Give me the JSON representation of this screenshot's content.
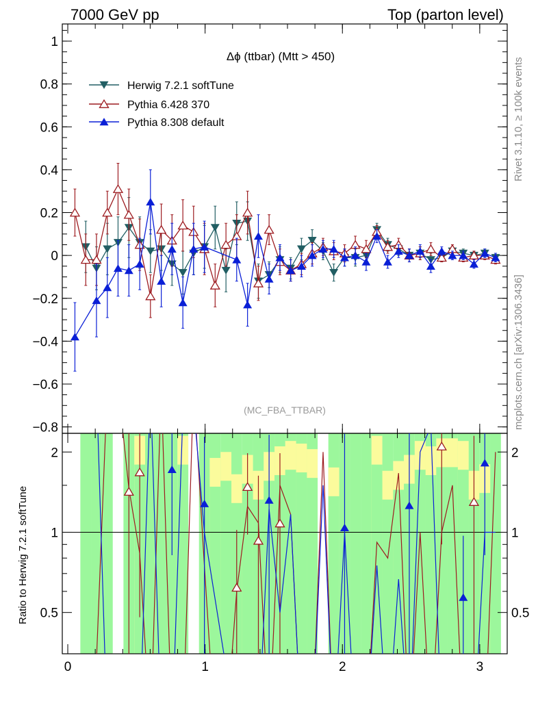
{
  "header": {
    "left": "7000 GeV pp",
    "right": "Top (parton level)"
  },
  "side_labels": {
    "rivet": "Rivet 3.1.10, ≥ 100k events",
    "mcplots": "mcplots.cern.ch [arXiv:1306.3436]"
  },
  "chart_data": {
    "type": "line",
    "title": "Δϕ (ttbar) (Mtt > 450)",
    "watermark": "(MC_FBA_TTBAR)",
    "ylabel_ratio": "Ratio to Herwig 7.2.1 softTune",
    "xlim": [
      -0.04,
      3.2
    ],
    "ylim_main": [
      -0.83,
      1.08
    ],
    "ylim_ratio": [
      0.35,
      2.35
    ],
    "x_ticks": [
      "0",
      "1",
      "2",
      "3"
    ],
    "y_ticks_main": [
      "−0.8",
      "−0.6",
      "−0.4",
      "−0.2",
      "0",
      "0.2",
      "0.4",
      "0.6",
      "0.8",
      "1"
    ],
    "y_ticks_ratio": [
      "0.5",
      "1",
      "2"
    ],
    "colors": {
      "herwig": "#215e63",
      "pythia6": "#9c1a1f",
      "pythia8": "#0a1fd6",
      "band_green": "#9cf79c",
      "band_yellow": "#fbfb9c"
    },
    "legend": [
      "Herwig 7.2.1 softTune",
      "Pythia 6.428 370",
      "Pythia 8.308 default"
    ],
    "x": [
      0.052,
      0.131,
      0.209,
      0.288,
      0.366,
      0.445,
      0.524,
      0.602,
      0.681,
      0.759,
      0.838,
      0.916,
      0.995,
      1.073,
      1.152,
      1.23,
      1.309,
      1.388,
      1.466,
      1.545,
      1.623,
      1.702,
      1.78,
      1.859,
      1.937,
      2.016,
      2.094,
      2.173,
      2.251,
      2.33,
      2.409,
      2.487,
      2.566,
      2.644,
      2.723,
      2.801,
      2.88,
      2.958,
      3.037,
      3.115
    ],
    "series": [
      {
        "name": "Herwig 7.2.1 softTune",
        "values": [
          null,
          0.04,
          -0.06,
          0.03,
          0.06,
          0.13,
          0.06,
          0.02,
          0.03,
          -0.04,
          -0.08,
          0.01,
          0.04,
          0.13,
          -0.07,
          0.15,
          0.16,
          -0.12,
          -0.09,
          -0.02,
          -0.06,
          0.03,
          0.07,
          0.02,
          -0.08,
          -0.01,
          -0.01,
          0.0,
          0.12,
          0.05,
          0.03,
          0.0,
          0.01,
          -0.02,
          -0.01,
          0.02,
          0.01,
          0.0,
          0.01,
          -0.01
        ],
        "errors": [
          null,
          0.12,
          0.1,
          0.12,
          0.12,
          0.14,
          0.12,
          0.1,
          0.1,
          0.1,
          0.1,
          0.1,
          0.1,
          0.1,
          0.1,
          0.1,
          0.09,
          0.08,
          0.06,
          0.06,
          0.05,
          0.05,
          0.05,
          0.04,
          0.04,
          0.04,
          0.04,
          0.04,
          0.03,
          0.03,
          0.03,
          0.03,
          0.03,
          0.03,
          0.02,
          0.02,
          0.02,
          0.02,
          0.02,
          0.02
        ]
      },
      {
        "name": "Pythia 6.428 370",
        "values": [
          0.2,
          -0.02,
          -0.02,
          0.2,
          0.31,
          0.19,
          0.05,
          -0.19,
          0.12,
          0.07,
          0.14,
          0.11,
          0.03,
          -0.14,
          0.05,
          0.09,
          0.2,
          -0.13,
          0.12,
          -0.03,
          -0.07,
          -0.04,
          0.01,
          0.04,
          0.02,
          0.01,
          0.05,
          0.03,
          0.11,
          0.04,
          0.05,
          0.0,
          0.01,
          0.03,
          -0.01,
          0.03,
          -0.01,
          0.0,
          0.0,
          -0.02
        ],
        "errors": [
          0.11,
          0.12,
          0.12,
          0.1,
          0.12,
          0.12,
          0.12,
          0.1,
          0.12,
          0.12,
          0.12,
          0.12,
          0.12,
          0.1,
          0.1,
          0.1,
          0.1,
          0.08,
          0.07,
          0.06,
          0.05,
          0.05,
          0.05,
          0.04,
          0.04,
          0.04,
          0.04,
          0.04,
          0.03,
          0.03,
          0.03,
          0.03,
          0.03,
          0.03,
          0.02,
          0.02,
          0.02,
          0.02,
          0.02,
          0.02
        ]
      },
      {
        "name": "Pythia 8.308 default",
        "values": [
          -0.38,
          null,
          -0.21,
          -0.15,
          -0.06,
          -0.07,
          -0.04,
          0.25,
          -0.12,
          0.03,
          -0.22,
          0.03,
          0.04,
          null,
          null,
          -0.02,
          -0.23,
          0.09,
          -0.11,
          -0.01,
          -0.07,
          -0.05,
          0.0,
          0.03,
          0.03,
          -0.01,
          0.0,
          -0.03,
          0.09,
          -0.03,
          0.02,
          0.0,
          0.02,
          -0.05,
          0.02,
          0.0,
          0.0,
          -0.04,
          0.01,
          -0.01
        ],
        "errors": [
          0.16,
          null,
          0.17,
          0.14,
          0.13,
          0.12,
          0.12,
          0.15,
          0.12,
          0.12,
          0.12,
          0.12,
          0.12,
          null,
          null,
          0.1,
          0.1,
          0.1,
          0.07,
          0.06,
          0.05,
          0.05,
          0.05,
          0.04,
          0.04,
          0.04,
          0.04,
          0.04,
          0.03,
          0.03,
          0.03,
          0.03,
          0.03,
          0.03,
          0.02,
          0.02,
          0.02,
          0.02,
          0.02,
          0.02
        ]
      }
    ],
    "ratio_series": [
      {
        "name": "Pythia 6.428 370",
        "values": [
          null,
          null,
          null,
          null,
          null,
          1.42,
          1.68,
          null,
          null,
          null,
          null,
          null,
          null,
          null,
          null,
          0.62,
          1.48,
          0.93,
          null,
          1.08,
          null,
          null,
          null,
          null,
          null,
          null,
          null,
          null,
          null,
          null,
          null,
          null,
          null,
          null,
          2.1,
          null,
          null,
          1.3,
          null,
          null
        ],
        "errors": [
          null,
          null,
          null,
          null,
          null,
          1.2,
          1.2,
          null,
          null,
          null,
          null,
          null,
          null,
          null,
          null,
          0.4,
          0.5,
          0.7,
          null,
          0.9,
          null,
          null,
          null,
          null,
          null,
          null,
          null,
          null,
          null,
          null,
          null,
          null,
          null,
          null,
          1.2,
          null,
          null,
          1.0,
          null,
          null
        ]
      },
      {
        "name": "Pythia 8.308 default",
        "values": [
          null,
          null,
          null,
          null,
          null,
          null,
          null,
          null,
          null,
          1.72,
          null,
          null,
          1.28,
          null,
          null,
          null,
          null,
          null,
          1.32,
          null,
          null,
          null,
          null,
          null,
          null,
          1.04,
          null,
          null,
          null,
          null,
          null,
          1.26,
          null,
          null,
          null,
          null,
          0.57,
          null,
          1.82,
          null
        ],
        "errors": [
          null,
          null,
          null,
          null,
          null,
          null,
          null,
          null,
          null,
          0.9,
          null,
          null,
          1.0,
          null,
          null,
          null,
          null,
          null,
          1.0,
          null,
          null,
          null,
          null,
          null,
          null,
          1.3,
          null,
          null,
          null,
          null,
          null,
          1.2,
          null,
          null,
          null,
          null,
          0.4,
          null,
          1.0,
          null
        ]
      }
    ],
    "band_green": [
      null,
      2.5,
      2.5,
      2.5,
      null,
      2.5,
      2.5,
      2.5,
      2.5,
      2.5,
      2.5,
      null,
      2.5,
      2.5,
      2.5,
      2.5,
      2.5,
      2.5,
      2.5,
      2.5,
      2.5,
      2.5,
      2.5,
      null,
      2.5,
      2.5,
      2.5,
      2.5,
      2.5,
      2.5,
      2.5,
      2.5,
      2.5,
      2.5,
      2.5,
      2.5,
      2.5,
      2.5,
      2.5,
      2.5
    ],
    "band_yellow": [
      null,
      null,
      null,
      null,
      null,
      null,
      2.3,
      null,
      null,
      null,
      2.3,
      null,
      null,
      1.9,
      2.0,
      1.65,
      1.95,
      1.7,
      2.0,
      2.1,
      2.2,
      2.15,
      2.05,
      null,
      1.75,
      null,
      null,
      null,
      2.3,
      1.7,
      1.85,
      1.95,
      2.2,
      2.1,
      2.25,
      2.25,
      2.2,
      1.7,
      1.8,
      null
    ]
  }
}
